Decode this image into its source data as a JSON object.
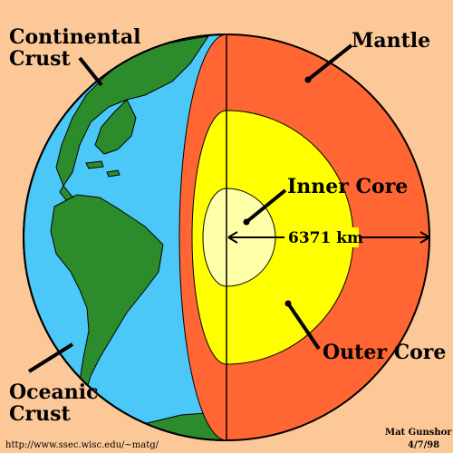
{
  "labels": {
    "continental_crust_line1": "Continental",
    "continental_crust_line2": "Crust",
    "mantle": "Mantle",
    "inner_core": "Inner Core",
    "radius": "6371 km",
    "outer_core": "Outer Core",
    "oceanic_crust_line1": "Oceanic",
    "oceanic_crust_line2": "Crust"
  },
  "credits": {
    "url": "http://www.ssec.wisc.edu/~matg/",
    "author": "Mat Gunshor",
    "date": "4/7/98"
  },
  "colors": {
    "background": "#fcc898",
    "ocean": "#4cc8f8",
    "land": "#2c8c2c",
    "mantle": "#ff6633",
    "outer_core": "#ffff00",
    "inner_core": "#ffffaa"
  }
}
